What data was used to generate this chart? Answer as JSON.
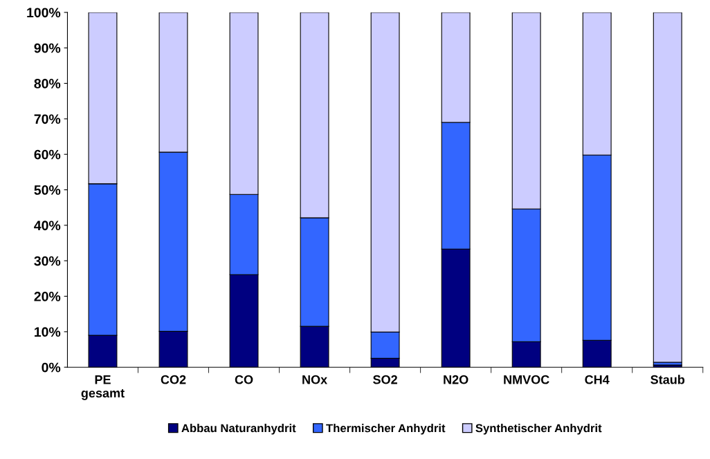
{
  "chart_data": {
    "type": "bar",
    "stacked": true,
    "categories": [
      "PE\ngesamt",
      "CO2",
      "CO",
      "NOx",
      "SO2",
      "N2O",
      "NMVOC",
      "CH4",
      "Staub"
    ],
    "series": [
      {
        "name": "Abbau Naturanhydrit",
        "color": "#000080",
        "values": [
          9.0,
          10.1,
          26.1,
          11.5,
          2.5,
          33.3,
          7.2,
          7.6,
          0.6
        ]
      },
      {
        "name": "Thermischer Anhydrit",
        "color": "#3366ff",
        "values": [
          42.7,
          50.5,
          22.6,
          30.6,
          7.4,
          35.7,
          37.4,
          52.2,
          0.8
        ]
      },
      {
        "name": "Synthetischer Anhydrit",
        "color": "#ccccff",
        "values": [
          48.3,
          39.4,
          51.3,
          57.9,
          90.1,
          31.0,
          55.4,
          40.2,
          98.6
        ]
      }
    ],
    "ylim": [
      0,
      100
    ],
    "yticks": [
      {
        "value": 0,
        "label": "0%"
      },
      {
        "value": 10,
        "label": "10%"
      },
      {
        "value": 20,
        "label": "20%"
      },
      {
        "value": 30,
        "label": "30%"
      },
      {
        "value": 40,
        "label": "40%"
      },
      {
        "value": 50,
        "label": "50%"
      },
      {
        "value": 60,
        "label": "60%"
      },
      {
        "value": 70,
        "label": "70%"
      },
      {
        "value": 80,
        "label": "80%"
      },
      {
        "value": 90,
        "label": "90%"
      },
      {
        "value": 100,
        "label": "100%"
      }
    ],
    "legend": "bottom",
    "grid": false
  }
}
